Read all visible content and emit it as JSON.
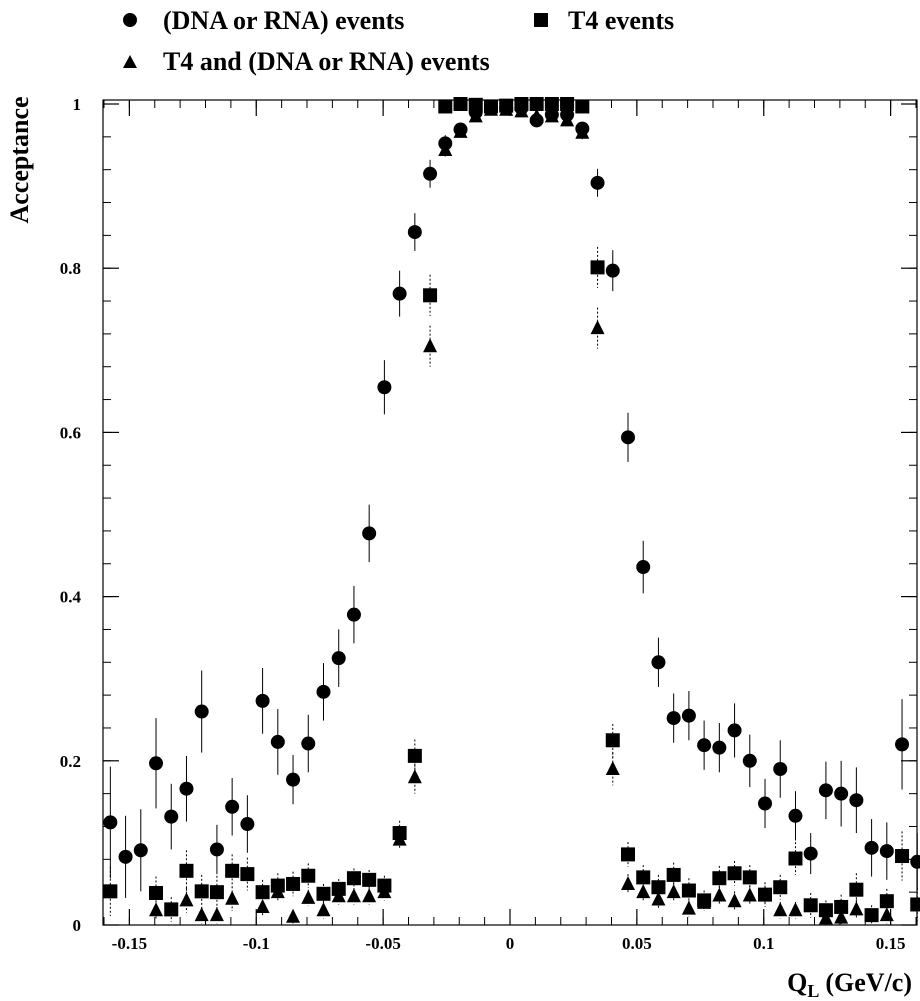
{
  "chart_data": {
    "type": "scatter",
    "xlabel": "Q",
    "xlabel_sub": "L",
    "xlabel_unit": "(GeV/c)",
    "ylabel": "Acceptance",
    "xlim": [
      -0.16,
      0.16
    ],
    "ylim": [
      0,
      1.02
    ],
    "grid": false,
    "legend_position": "top",
    "x_ticks": [
      -0.15,
      -0.1,
      -0.05,
      0,
      0.05,
      0.1,
      0.15
    ],
    "x_tick_labels": [
      "-0.15",
      "-0.1",
      "-0.05",
      "0",
      "0.05",
      "0.1",
      "0.15"
    ],
    "y_ticks": [
      0,
      0.2,
      0.4,
      0.6,
      0.8,
      1
    ],
    "y_tick_labels": [
      "0",
      "0.2",
      "0.4",
      "0.6",
      "0.8",
      "1"
    ],
    "series": [
      {
        "name": "(DNA or RNA) events",
        "marker": "circle",
        "points": [
          {
            "x": -0.1575,
            "y": 0.125,
            "err": 0.068
          },
          {
            "x": -0.1515,
            "y": 0.083,
            "err": 0.05
          },
          {
            "x": -0.1455,
            "y": 0.091,
            "err": 0.05
          },
          {
            "x": -0.1395,
            "y": 0.197,
            "err": 0.055
          },
          {
            "x": -0.1335,
            "y": 0.132,
            "err": 0.04
          },
          {
            "x": -0.1275,
            "y": 0.166,
            "err": 0.04
          },
          {
            "x": -0.1215,
            "y": 0.26,
            "err": 0.05
          },
          {
            "x": -0.1155,
            "y": 0.092,
            "err": 0.03
          },
          {
            "x": -0.1095,
            "y": 0.144,
            "err": 0.035
          },
          {
            "x": -0.1035,
            "y": 0.123,
            "err": 0.035
          },
          {
            "x": -0.0975,
            "y": 0.273,
            "err": 0.04
          },
          {
            "x": -0.0915,
            "y": 0.223,
            "err": 0.04
          },
          {
            "x": -0.0855,
            "y": 0.177,
            "err": 0.03
          },
          {
            "x": -0.0795,
            "y": 0.221,
            "err": 0.035
          },
          {
            "x": -0.0735,
            "y": 0.284,
            "err": 0.035
          },
          {
            "x": -0.0675,
            "y": 0.325,
            "err": 0.035
          },
          {
            "x": -0.0615,
            "y": 0.378,
            "err": 0.035
          },
          {
            "x": -0.0555,
            "y": 0.477,
            "err": 0.035
          },
          {
            "x": -0.0495,
            "y": 0.655,
            "err": 0.033
          },
          {
            "x": -0.0435,
            "y": 0.769,
            "err": 0.028
          },
          {
            "x": -0.0375,
            "y": 0.844,
            "err": 0.023
          },
          {
            "x": -0.0315,
            "y": 0.915,
            "err": 0.017
          },
          {
            "x": -0.0255,
            "y": 0.952,
            "err": 0.01
          },
          {
            "x": -0.0195,
            "y": 0.969,
            "err": 0.008
          },
          {
            "x": -0.0135,
            "y": 0.99,
            "err": 0.005
          },
          {
            "x": -0.0075,
            "y": 0.995,
            "err": 0.004
          },
          {
            "x": -0.0015,
            "y": 0.995,
            "err": 0.004
          },
          {
            "x": 0.0045,
            "y": 0.995,
            "err": 0.004
          },
          {
            "x": 0.0105,
            "y": 0.98,
            "err": 0.006
          },
          {
            "x": 0.0165,
            "y": 0.987,
            "err": 0.005
          },
          {
            "x": 0.0225,
            "y": 0.987,
            "err": 0.005
          },
          {
            "x": 0.0285,
            "y": 0.97,
            "err": 0.008
          },
          {
            "x": 0.0345,
            "y": 0.904,
            "err": 0.017
          },
          {
            "x": 0.0405,
            "y": 0.797,
            "err": 0.025
          },
          {
            "x": 0.0465,
            "y": 0.594,
            "err": 0.03
          },
          {
            "x": 0.0525,
            "y": 0.436,
            "err": 0.032
          },
          {
            "x": 0.0585,
            "y": 0.32,
            "err": 0.03
          },
          {
            "x": 0.0645,
            "y": 0.252,
            "err": 0.03
          },
          {
            "x": 0.0705,
            "y": 0.255,
            "err": 0.03
          },
          {
            "x": 0.0765,
            "y": 0.219,
            "err": 0.03
          },
          {
            "x": 0.0825,
            "y": 0.216,
            "err": 0.03
          },
          {
            "x": 0.0885,
            "y": 0.237,
            "err": 0.033
          },
          {
            "x": 0.0945,
            "y": 0.2,
            "err": 0.032
          },
          {
            "x": 0.1005,
            "y": 0.148,
            "err": 0.03
          },
          {
            "x": 0.1065,
            "y": 0.19,
            "err": 0.035
          },
          {
            "x": 0.1125,
            "y": 0.133,
            "err": 0.03
          },
          {
            "x": 0.1185,
            "y": 0.087,
            "err": 0.025
          },
          {
            "x": 0.1245,
            "y": 0.164,
            "err": 0.035
          },
          {
            "x": 0.1305,
            "y": 0.16,
            "err": 0.04
          },
          {
            "x": 0.1365,
            "y": 0.152,
            "err": 0.04
          },
          {
            "x": 0.1425,
            "y": 0.094,
            "err": 0.035
          },
          {
            "x": 0.1485,
            "y": 0.09,
            "err": 0.035
          },
          {
            "x": 0.1545,
            "y": 0.22,
            "err": 0.055
          },
          {
            "x": 0.1605,
            "y": 0.077,
            "err": 0.035
          }
        ]
      },
      {
        "name": "T4 events",
        "marker": "square",
        "points": [
          {
            "x": -0.1575,
            "y": 0.041,
            "err": 0.03
          },
          {
            "x": -0.1395,
            "y": 0.039,
            "err": 0.02
          },
          {
            "x": -0.1335,
            "y": 0.019,
            "err": 0.015
          },
          {
            "x": -0.1275,
            "y": 0.066,
            "err": 0.025
          },
          {
            "x": -0.1215,
            "y": 0.041,
            "err": 0.02
          },
          {
            "x": -0.1155,
            "y": 0.04,
            "err": 0.02
          },
          {
            "x": -0.1095,
            "y": 0.066,
            "err": 0.02
          },
          {
            "x": -0.1035,
            "y": 0.062,
            "err": 0.02
          },
          {
            "x": -0.0975,
            "y": 0.04,
            "err": 0.015
          },
          {
            "x": -0.0915,
            "y": 0.048,
            "err": 0.015
          },
          {
            "x": -0.0855,
            "y": 0.05,
            "err": 0.015
          },
          {
            "x": -0.0795,
            "y": 0.06,
            "err": 0.015
          },
          {
            "x": -0.0735,
            "y": 0.038,
            "err": 0.012
          },
          {
            "x": -0.0675,
            "y": 0.044,
            "err": 0.012
          },
          {
            "x": -0.0615,
            "y": 0.057,
            "err": 0.012
          },
          {
            "x": -0.0555,
            "y": 0.055,
            "err": 0.012
          },
          {
            "x": -0.0495,
            "y": 0.048,
            "err": 0.012
          },
          {
            "x": -0.0435,
            "y": 0.112,
            "err": 0.015
          },
          {
            "x": -0.0375,
            "y": 0.206,
            "err": 0.02
          },
          {
            "x": -0.0315,
            "y": 0.767,
            "err": 0.025
          },
          {
            "x": -0.0255,
            "y": 0.997,
            "err": 0.003
          },
          {
            "x": -0.0195,
            "y": 1.0,
            "err": 0.002
          },
          {
            "x": -0.0135,
            "y": 0.999,
            "err": 0.002
          },
          {
            "x": -0.0075,
            "y": 0.997,
            "err": 0.002
          },
          {
            "x": -0.0015,
            "y": 0.998,
            "err": 0.002
          },
          {
            "x": 0.0045,
            "y": 1.0,
            "err": 0.002
          },
          {
            "x": 0.0105,
            "y": 1.0,
            "err": 0.002
          },
          {
            "x": 0.0165,
            "y": 1.0,
            "err": 0.002
          },
          {
            "x": 0.0225,
            "y": 1.0,
            "err": 0.002
          },
          {
            "x": 0.0285,
            "y": 0.997,
            "err": 0.003
          },
          {
            "x": 0.0345,
            "y": 0.801,
            "err": 0.025
          },
          {
            "x": 0.0405,
            "y": 0.225,
            "err": 0.02
          },
          {
            "x": 0.0465,
            "y": 0.086,
            "err": 0.015
          },
          {
            "x": 0.0525,
            "y": 0.058,
            "err": 0.015
          },
          {
            "x": 0.0585,
            "y": 0.046,
            "err": 0.015
          },
          {
            "x": 0.0645,
            "y": 0.061,
            "err": 0.015
          },
          {
            "x": 0.0705,
            "y": 0.042,
            "err": 0.015
          },
          {
            "x": 0.0765,
            "y": 0.03,
            "err": 0.012
          },
          {
            "x": 0.0825,
            "y": 0.057,
            "err": 0.015
          },
          {
            "x": 0.0885,
            "y": 0.063,
            "err": 0.015
          },
          {
            "x": 0.0945,
            "y": 0.058,
            "err": 0.015
          },
          {
            "x": 0.1005,
            "y": 0.037,
            "err": 0.015
          },
          {
            "x": 0.1065,
            "y": 0.046,
            "err": 0.015
          },
          {
            "x": 0.1125,
            "y": 0.081,
            "err": 0.02
          },
          {
            "x": 0.1185,
            "y": 0.024,
            "err": 0.015
          },
          {
            "x": 0.1245,
            "y": 0.018,
            "err": 0.012
          },
          {
            "x": 0.1305,
            "y": 0.022,
            "err": 0.015
          },
          {
            "x": 0.1365,
            "y": 0.043,
            "err": 0.02
          },
          {
            "x": 0.1425,
            "y": 0.012,
            "err": 0.012
          },
          {
            "x": 0.1485,
            "y": 0.029,
            "err": 0.015
          },
          {
            "x": 0.1545,
            "y": 0.084,
            "err": 0.03
          },
          {
            "x": 0.1605,
            "y": 0.025,
            "err": 0.02
          }
        ]
      },
      {
        "name": "T4 and (DNA or RNA) events",
        "marker": "triangle",
        "points": [
          {
            "x": -0.1395,
            "y": 0.018,
            "err": 0.012
          },
          {
            "x": -0.1275,
            "y": 0.03,
            "err": 0.015
          },
          {
            "x": -0.1215,
            "y": 0.012,
            "err": 0.01
          },
          {
            "x": -0.1155,
            "y": 0.012,
            "err": 0.01
          },
          {
            "x": -0.1095,
            "y": 0.032,
            "err": 0.015
          },
          {
            "x": -0.0975,
            "y": 0.022,
            "err": 0.012
          },
          {
            "x": -0.0915,
            "y": 0.04,
            "err": 0.012
          },
          {
            "x": -0.0855,
            "y": 0.01,
            "err": 0.008
          },
          {
            "x": -0.0795,
            "y": 0.033,
            "err": 0.01
          },
          {
            "x": -0.0735,
            "y": 0.018,
            "err": 0.01
          },
          {
            "x": -0.0675,
            "y": 0.035,
            "err": 0.01
          },
          {
            "x": -0.0615,
            "y": 0.035,
            "err": 0.01
          },
          {
            "x": -0.0555,
            "y": 0.035,
            "err": 0.01
          },
          {
            "x": -0.0495,
            "y": 0.04,
            "err": 0.01
          },
          {
            "x": -0.0435,
            "y": 0.104,
            "err": 0.012
          },
          {
            "x": -0.0375,
            "y": 0.18,
            "err": 0.02
          },
          {
            "x": -0.0315,
            "y": 0.705,
            "err": 0.025
          },
          {
            "x": -0.0255,
            "y": 0.944,
            "err": 0.008
          },
          {
            "x": -0.0195,
            "y": 0.966,
            "err": 0.006
          },
          {
            "x": -0.0135,
            "y": 0.985,
            "err": 0.005
          },
          {
            "x": -0.0075,
            "y": 0.993,
            "err": 0.004
          },
          {
            "x": -0.0015,
            "y": 0.993,
            "err": 0.004
          },
          {
            "x": 0.0045,
            "y": 0.991,
            "err": 0.004
          },
          {
            "x": 0.0105,
            "y": 0.985,
            "err": 0.005
          },
          {
            "x": 0.0165,
            "y": 0.985,
            "err": 0.005
          },
          {
            "x": 0.0225,
            "y": 0.98,
            "err": 0.006
          },
          {
            "x": 0.0285,
            "y": 0.965,
            "err": 0.008
          },
          {
            "x": 0.0345,
            "y": 0.727,
            "err": 0.025
          },
          {
            "x": 0.0405,
            "y": 0.19,
            "err": 0.02
          },
          {
            "x": 0.0465,
            "y": 0.05,
            "err": 0.012
          },
          {
            "x": 0.0525,
            "y": 0.04,
            "err": 0.012
          },
          {
            "x": 0.0585,
            "y": 0.031,
            "err": 0.012
          },
          {
            "x": 0.0645,
            "y": 0.04,
            "err": 0.012
          },
          {
            "x": 0.0705,
            "y": 0.02,
            "err": 0.01
          },
          {
            "x": 0.0765,
            "y": 0.027,
            "err": 0.01
          },
          {
            "x": 0.0825,
            "y": 0.036,
            "err": 0.012
          },
          {
            "x": 0.0885,
            "y": 0.029,
            "err": 0.012
          },
          {
            "x": 0.0945,
            "y": 0.036,
            "err": 0.012
          },
          {
            "x": 0.1005,
            "y": 0.036,
            "err": 0.012
          },
          {
            "x": 0.1065,
            "y": 0.018,
            "err": 0.01
          },
          {
            "x": 0.1125,
            "y": 0.018,
            "err": 0.01
          },
          {
            "x": 0.1245,
            "y": 0.008,
            "err": 0.008
          },
          {
            "x": 0.1305,
            "y": 0.009,
            "err": 0.008
          },
          {
            "x": 0.1365,
            "y": 0.019,
            "err": 0.012
          },
          {
            "x": 0.1485,
            "y": 0.012,
            "err": 0.01
          }
        ]
      }
    ]
  }
}
